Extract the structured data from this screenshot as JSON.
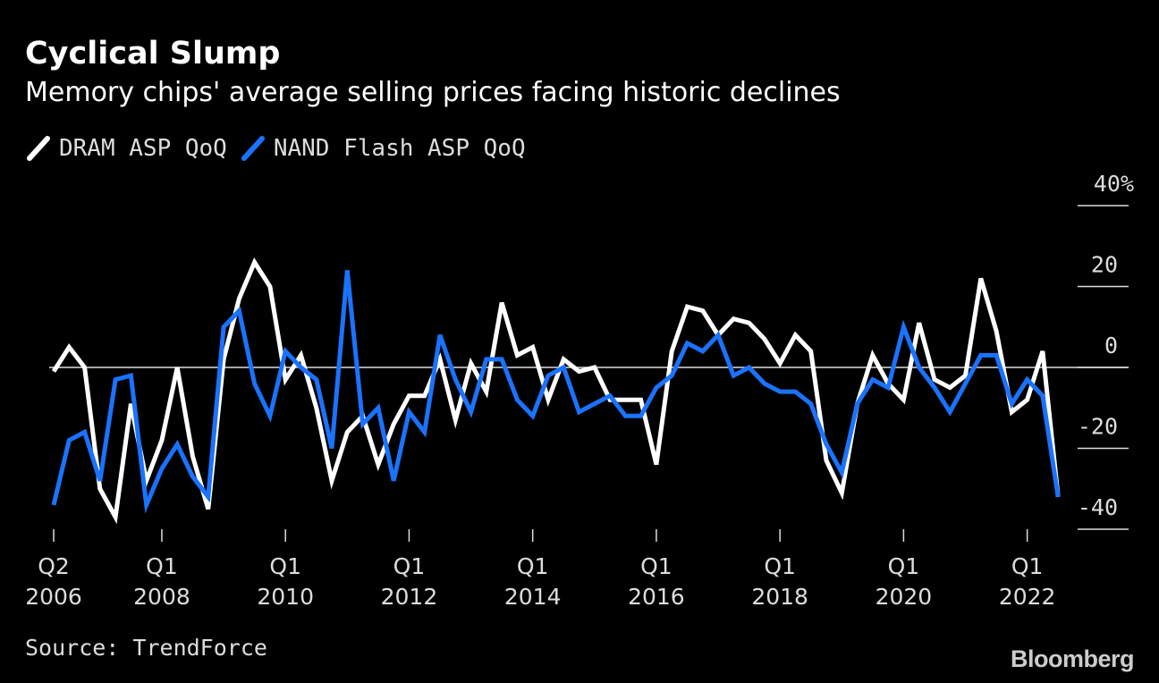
{
  "title": "Cyclical Slump",
  "subtitle": "Memory chips' average selling prices facing historic declines",
  "source": "Source: TrendForce",
  "brand": "Bloomberg",
  "colors": {
    "background": "#000000",
    "dram": "#ffffff",
    "nand": "#1a73ff",
    "text": "#dddddd"
  },
  "chart_data": {
    "type": "line",
    "title": "Cyclical Slump",
    "subtitle": "Memory chips' average selling prices facing historic declines",
    "x": [
      "2006Q2",
      "2006Q3",
      "2006Q4",
      "2007Q1",
      "2007Q2",
      "2007Q3",
      "2007Q4",
      "2008Q1",
      "2008Q2",
      "2008Q3",
      "2008Q4",
      "2009Q1",
      "2009Q2",
      "2009Q3",
      "2009Q4",
      "2010Q1",
      "2010Q2",
      "2010Q3",
      "2010Q4",
      "2011Q1",
      "2011Q2",
      "2011Q3",
      "2011Q4",
      "2012Q1",
      "2012Q2",
      "2012Q3",
      "2012Q4",
      "2013Q1",
      "2013Q2",
      "2013Q3",
      "2013Q4",
      "2014Q1",
      "2014Q2",
      "2014Q3",
      "2014Q4",
      "2015Q1",
      "2015Q2",
      "2015Q3",
      "2015Q4",
      "2016Q1",
      "2016Q2",
      "2016Q3",
      "2016Q4",
      "2017Q1",
      "2017Q2",
      "2017Q3",
      "2017Q4",
      "2018Q1",
      "2018Q2",
      "2018Q3",
      "2018Q4",
      "2019Q1",
      "2019Q2",
      "2019Q3",
      "2019Q4",
      "2020Q1",
      "2020Q2",
      "2020Q3",
      "2020Q4",
      "2021Q1",
      "2021Q2",
      "2021Q3",
      "2021Q4",
      "2022Q1",
      "2022Q2",
      "2022Q3"
    ],
    "series": [
      {
        "name": "DRAM ASP QoQ",
        "color": "#ffffff",
        "values": [
          -1,
          5,
          0,
          -30,
          -37,
          -9,
          -28,
          -18,
          0,
          -22,
          -35,
          2,
          17,
          26,
          20,
          -3,
          3,
          -10,
          -28,
          -16,
          -12,
          -24,
          -14,
          -7,
          -7,
          2,
          -13,
          1,
          -6,
          16,
          3,
          5,
          -8,
          2,
          -1,
          0,
          -8,
          -8,
          -8,
          -24,
          4,
          15,
          14,
          8,
          12,
          11,
          7,
          1,
          8,
          4,
          -23,
          -31,
          -9,
          3,
          -4,
          -8,
          11,
          -3,
          -5,
          -2,
          22,
          9,
          -11,
          -8,
          4,
          -32
        ]
      },
      {
        "name": "NAND Flash ASP QoQ",
        "color": "#1a73ff",
        "values": [
          -34,
          -18,
          -16,
          -28,
          -3,
          -2,
          -34,
          -25,
          -19,
          -27,
          -32,
          10,
          14,
          -4,
          -12,
          4,
          0,
          -3,
          -20,
          24,
          -14,
          -10,
          -28,
          -11,
          -16,
          8,
          -3,
          -11,
          2,
          2,
          -8,
          -12,
          -2,
          0,
          -11,
          -9,
          -7,
          -12,
          -12,
          -5,
          -2,
          6,
          4,
          8,
          -2,
          0,
          -4,
          -6,
          -6,
          -9,
          -19,
          -26,
          -9,
          -3,
          -5,
          10,
          0,
          -5,
          -11,
          -4,
          3,
          3,
          -9,
          -3,
          -7,
          -32
        ]
      }
    ],
    "ylim": [
      -40,
      40
    ],
    "yticks": [
      {
        "value": 40,
        "label": "40%"
      },
      {
        "value": 20,
        "label": "20"
      },
      {
        "value": 0,
        "label": "0"
      },
      {
        "value": -20,
        "label": "-20"
      },
      {
        "value": -40,
        "label": "-40"
      }
    ],
    "xticks": [
      {
        "x": "2006Q2",
        "label1": "Q2",
        "label2": "2006"
      },
      {
        "x": "2008Q1",
        "label1": "Q1",
        "label2": "2008"
      },
      {
        "x": "2010Q1",
        "label1": "Q1",
        "label2": "2010"
      },
      {
        "x": "2012Q1",
        "label1": "Q1",
        "label2": "2012"
      },
      {
        "x": "2014Q1",
        "label1": "Q1",
        "label2": "2014"
      },
      {
        "x": "2016Q1",
        "label1": "Q1",
        "label2": "2016"
      },
      {
        "x": "2018Q1",
        "label1": "Q1",
        "label2": "2018"
      },
      {
        "x": "2020Q1",
        "label1": "Q1",
        "label2": "2020"
      },
      {
        "x": "2022Q1",
        "label1": "Q1",
        "label2": "2022"
      }
    ],
    "legend_position": "top-left",
    "grid": false,
    "zero_line": true
  }
}
